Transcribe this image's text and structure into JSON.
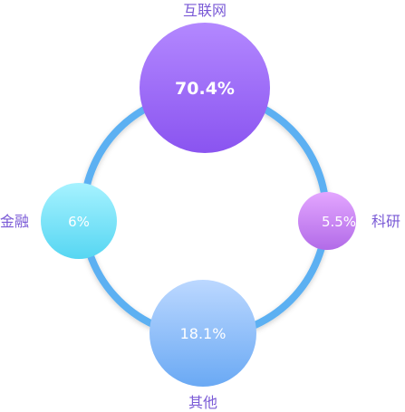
{
  "colors": {
    "ring": "#5bb0f2",
    "label": "#7a5ad6"
  },
  "nodes": [
    {
      "id": "internet",
      "label": "互联网",
      "value": "70.4%",
      "grad": [
        "#b388ff",
        "#8a54f0"
      ]
    },
    {
      "id": "research",
      "label": "科研",
      "value": "5.5%",
      "grad": [
        "#e3a6ff",
        "#b26be8"
      ]
    },
    {
      "id": "other",
      "label": "其他",
      "value": "18.1%",
      "grad": [
        "#bcd8ff",
        "#6aa9f4"
      ]
    },
    {
      "id": "finance",
      "label": "金融",
      "value": "6%",
      "grad": [
        "#a6f2ff",
        "#56d6f2"
      ]
    }
  ]
}
